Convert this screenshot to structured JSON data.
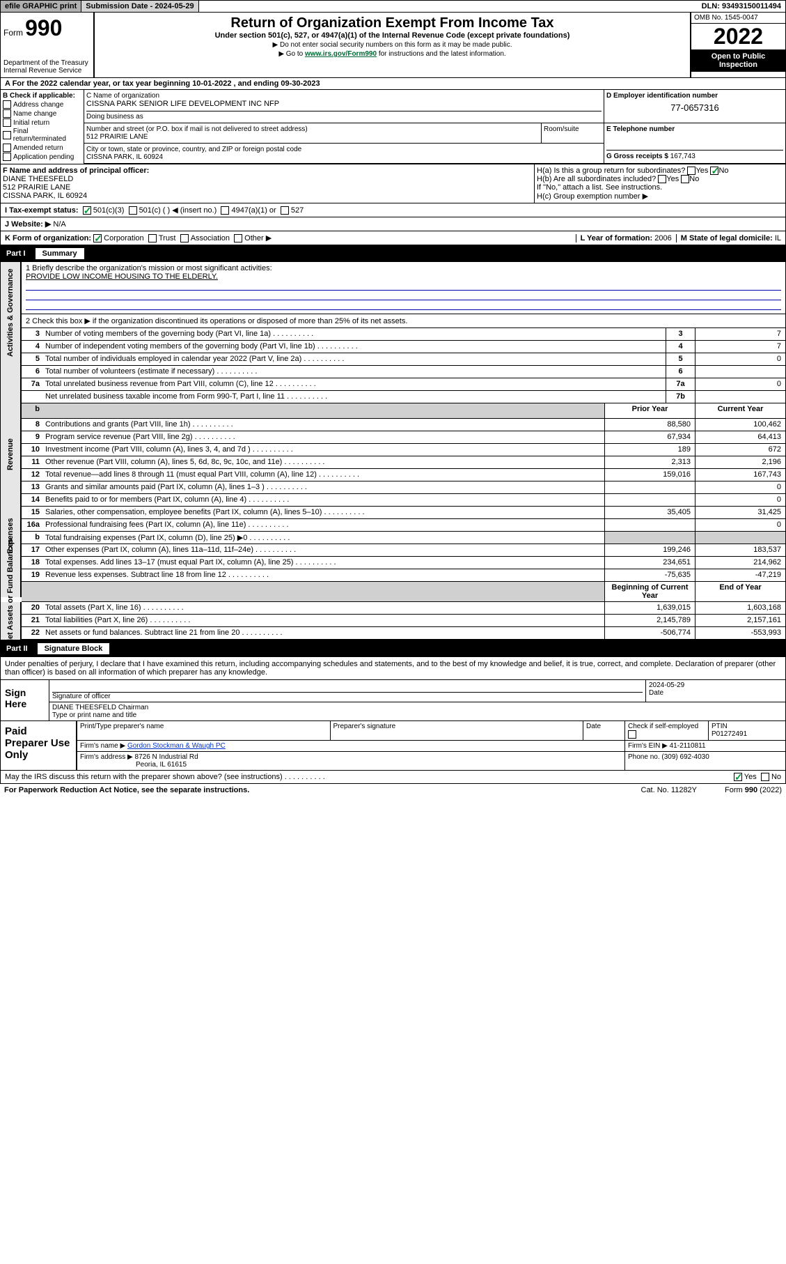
{
  "top": {
    "efile": "efile GRAPHIC print",
    "submission_label": "Submission Date - 2024-05-29",
    "dln": "DLN: 93493150011494"
  },
  "header": {
    "form_label": "Form",
    "form_number": "990",
    "dept": "Department of the Treasury",
    "irs": "Internal Revenue Service",
    "title": "Return of Organization Exempt From Income Tax",
    "subtitle": "Under section 501(c), 527, or 4947(a)(1) of the Internal Revenue Code (except private foundations)",
    "instr1": "▶ Do not enter social security numbers on this form as it may be made public.",
    "instr2_pre": "▶ Go to ",
    "instr2_link": "www.irs.gov/Form990",
    "instr2_post": " for instructions and the latest information.",
    "omb": "OMB No. 1545-0047",
    "year": "2022",
    "open": "Open to Public Inspection"
  },
  "band_A": "A For the 2022 calendar year, or tax year beginning 10-01-2022   , and ending 09-30-2023",
  "col_B": {
    "title": "B Check if applicable:",
    "addr_change": "Address change",
    "name_change": "Name change",
    "initial": "Initial return",
    "final": "Final return/terminated",
    "amended": "Amended return",
    "app": "Application pending"
  },
  "org": {
    "c_label": "C Name of organization",
    "name": "CISSNA PARK SENIOR LIFE DEVELOPMENT INC NFP",
    "dba_label": "Doing business as",
    "street_label": "Number and street (or P.O. box if mail is not delivered to street address)",
    "street": "512 PRAIRIE LANE",
    "room_label": "Room/suite",
    "city_label": "City or town, state or province, country, and ZIP or foreign postal code",
    "city": "CISSNA PARK, IL  60924"
  },
  "ein": {
    "label": "D Employer identification number",
    "value": "77-0657316"
  },
  "tel": {
    "label": "E Telephone number"
  },
  "gross": {
    "label": "G Gross receipts $",
    "value": "167,743"
  },
  "fpo": {
    "label": "F Name and address of principal officer:",
    "name": "DIANE THEESFELD",
    "street": "512 PRAIRIE LANE",
    "city": "CISSNA PARK, IL  60924"
  },
  "ha": {
    "a": "H(a)  Is this a group return for subordinates?",
    "b": "H(b)  Are all subordinates included?",
    "note": "If \"No,\" attach a list. See instructions.",
    "c": "H(c)  Group exemption number ▶",
    "yes": "Yes",
    "no": "No"
  },
  "tax_status": {
    "label": "I   Tax-exempt status:",
    "c3": "501(c)(3)",
    "c_insert": "501(c) (   ) ◀ (insert no.)",
    "a1": "4947(a)(1) or",
    "s527": "527"
  },
  "website": {
    "label": "J   Website: ▶",
    "value": "N/A"
  },
  "k_form": {
    "label": "K Form of organization:",
    "corp": "Corporation",
    "trust": "Trust",
    "assoc": "Association",
    "other": "Other ▶"
  },
  "l_year": {
    "label": "L Year of formation:",
    "value": "2006"
  },
  "m_state": {
    "label": "M State of legal domicile:",
    "value": "IL"
  },
  "part1": {
    "label": "Part I",
    "title": "Summary"
  },
  "mission": {
    "label": "1   Briefly describe the organization's mission or most significant activities:",
    "text": "PROVIDE LOW INCOME HOUSING TO THE ELDERLY."
  },
  "line2": "2   Check this box ▶      if the organization discontinued its operations or disposed of more than 25% of its net assets.",
  "rows_simple": [
    {
      "n": "3",
      "d": "Number of voting members of the governing body (Part VI, line 1a)",
      "c": "3",
      "v": "7"
    },
    {
      "n": "4",
      "d": "Number of independent voting members of the governing body (Part VI, line 1b)",
      "c": "4",
      "v": "7"
    },
    {
      "n": "5",
      "d": "Total number of individuals employed in calendar year 2022 (Part V, line 2a)",
      "c": "5",
      "v": "0"
    },
    {
      "n": "6",
      "d": "Total number of volunteers (estimate if necessary)",
      "c": "6",
      "v": ""
    },
    {
      "n": "7a",
      "d": "Total unrelated business revenue from Part VIII, column (C), line 12",
      "c": "7a",
      "v": "0"
    },
    {
      "n": "",
      "d": "Net unrelated business taxable income from Form 990-T, Part I, line 11",
      "c": "7b",
      "v": ""
    }
  ],
  "col_headers": {
    "prior": "Prior Year",
    "current": "Current Year",
    "boy": "Beginning of Current Year",
    "eoy": "End of Year"
  },
  "rev": [
    {
      "n": "8",
      "d": "Contributions and grants (Part VIII, line 1h)",
      "p": "88,580",
      "c": "100,462"
    },
    {
      "n": "9",
      "d": "Program service revenue (Part VIII, line 2g)",
      "p": "67,934",
      "c": "64,413"
    },
    {
      "n": "10",
      "d": "Investment income (Part VIII, column (A), lines 3, 4, and 7d )",
      "p": "189",
      "c": "672"
    },
    {
      "n": "11",
      "d": "Other revenue (Part VIII, column (A), lines 5, 6d, 8c, 9c, 10c, and 11e)",
      "p": "2,313",
      "c": "2,196"
    },
    {
      "n": "12",
      "d": "Total revenue—add lines 8 through 11 (must equal Part VIII, column (A), line 12)",
      "p": "159,016",
      "c": "167,743"
    }
  ],
  "exp": [
    {
      "n": "13",
      "d": "Grants and similar amounts paid (Part IX, column (A), lines 1–3 )",
      "p": "",
      "c": "0"
    },
    {
      "n": "14",
      "d": "Benefits paid to or for members (Part IX, column (A), line 4)",
      "p": "",
      "c": "0"
    },
    {
      "n": "15",
      "d": "Salaries, other compensation, employee benefits (Part IX, column (A), lines 5–10)",
      "p": "35,405",
      "c": "31,425"
    },
    {
      "n": "16a",
      "d": "Professional fundraising fees (Part IX, column (A), line 11e)",
      "p": "",
      "c": "0"
    },
    {
      "n": "b",
      "d": "Total fundraising expenses (Part IX, column (D), line 25) ▶0",
      "p": "shade",
      "c": "shade"
    },
    {
      "n": "17",
      "d": "Other expenses (Part IX, column (A), lines 11a–11d, 11f–24e)",
      "p": "199,246",
      "c": "183,537"
    },
    {
      "n": "18",
      "d": "Total expenses. Add lines 13–17 (must equal Part IX, column (A), line 25)",
      "p": "234,651",
      "c": "214,962"
    },
    {
      "n": "19",
      "d": "Revenue less expenses. Subtract line 18 from line 12",
      "p": "-75,635",
      "c": "-47,219"
    }
  ],
  "net": [
    {
      "n": "20",
      "d": "Total assets (Part X, line 16)",
      "p": "1,639,015",
      "c": "1,603,168"
    },
    {
      "n": "21",
      "d": "Total liabilities (Part X, line 26)",
      "p": "2,145,789",
      "c": "2,157,161"
    },
    {
      "n": "22",
      "d": "Net assets or fund balances. Subtract line 21 from line 20",
      "p": "-506,774",
      "c": "-553,993"
    }
  ],
  "side_labels": {
    "ag": "Activities & Governance",
    "rev": "Revenue",
    "exp": "Expenses",
    "net": "Net Assets or Fund Balances"
  },
  "part2": {
    "label": "Part II",
    "title": "Signature Block"
  },
  "penalty": "Under penalties of perjury, I declare that I have examined this return, including accompanying schedules and statements, and to the best of my knowledge and belief, it is true, correct, and complete. Declaration of preparer (other than officer) is based on all information of which preparer has any knowledge.",
  "sign": {
    "here": "Sign Here",
    "sig_label": "Signature of officer",
    "date": "2024-05-29",
    "date_label": "Date",
    "name": "DIANE THEESFELD Chairman",
    "type_label": "Type or print name and title"
  },
  "paid": {
    "label": "Paid Preparer Use Only",
    "print_label": "Print/Type preparer's name",
    "sig_label": "Preparer's signature",
    "date_label": "Date",
    "check_label": "Check        if self-employed",
    "ptin_label": "PTIN",
    "ptin": "P01272491",
    "firm_name_label": "Firm's name   ▶",
    "firm_name": "Gordon Stockman & Waugh PC",
    "firm_ein_label": "Firm's EIN ▶",
    "firm_ein": "41-2110811",
    "firm_addr_label": "Firm's address ▶",
    "firm_addr": "8726 N Industrial Rd",
    "firm_city": "Peoria, IL  61615",
    "phone_label": "Phone no.",
    "phone": "(309) 692-4030"
  },
  "discuss": "May the IRS discuss this return with the preparer shown above? (see instructions)",
  "footer": {
    "left": "For Paperwork Reduction Act Notice, see the separate instructions.",
    "mid": "Cat. No. 11282Y",
    "right": "Form 990 (2022)"
  }
}
